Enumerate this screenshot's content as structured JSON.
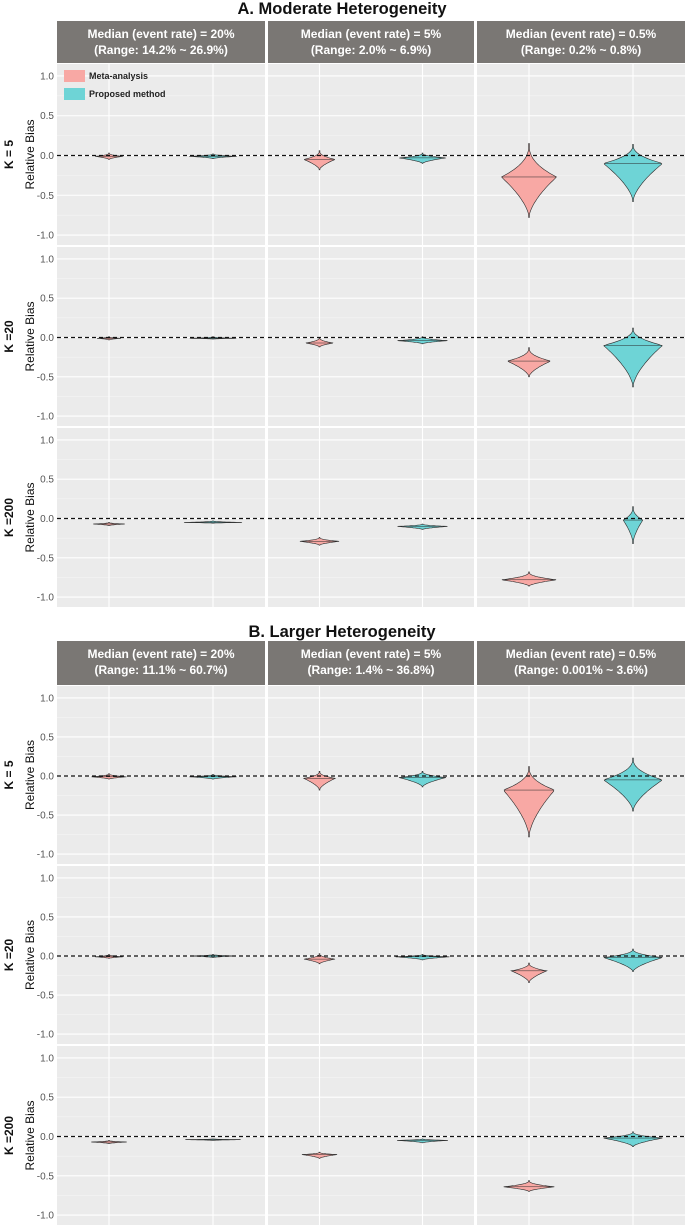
{
  "chart_data": {
    "type": "violin",
    "ylabel": "Relative Bias",
    "y_ticks": [
      "1.0",
      "0.5",
      "0.0",
      "-0.5",
      "-1.0"
    ],
    "ylim": [
      -1.05,
      1.05
    ],
    "reference_line": 0,
    "legend": {
      "position": "top-left",
      "items": [
        {
          "name": "Meta-analysis",
          "color": "#F8A8A4"
        },
        {
          "name": "Proposed method",
          "color": "#6ED4D6"
        }
      ]
    },
    "sections": [
      {
        "title": "A. Moderate Heterogeneity",
        "columns": [
          {
            "line1": "Median (event rate) = 20%",
            "line2": "(Range: 14.2% ~ 26.9%)"
          },
          {
            "line1": "Median (event rate) = 5%",
            "line2": "(Range: 2.0% ~ 6.9%)"
          },
          {
            "line1": "Median (event rate) = 0.5%",
            "line2": "(Range: 0.2% ~ 0.8%)"
          }
        ],
        "rows": [
          {
            "label": "K = 5",
            "cells": [
              [
                {
                  "series": "Meta-analysis",
                  "min": -0.05,
                  "max": 0.03,
                  "median": -0.01,
                  "halfwidth": 0.35
                },
                {
                  "series": "Proposed method",
                  "min": -0.04,
                  "max": 0.02,
                  "median": -0.01,
                  "halfwidth": 0.6
                }
              ],
              [
                {
                  "series": "Meta-analysis",
                  "min": -0.18,
                  "max": 0.06,
                  "median": -0.05,
                  "halfwidth": 0.4
                },
                {
                  "series": "Proposed method",
                  "min": -0.1,
                  "max": 0.03,
                  "median": -0.03,
                  "halfwidth": 0.6
                }
              ],
              [
                {
                  "series": "Meta-analysis",
                  "min": -0.78,
                  "max": 0.15,
                  "median": -0.27,
                  "halfwidth": 0.7
                },
                {
                  "series": "Proposed method",
                  "min": -0.58,
                  "max": 0.14,
                  "median": -0.1,
                  "halfwidth": 0.75
                }
              ]
            ]
          },
          {
            "label": "K =20",
            "cells": [
              [
                {
                  "series": "Meta-analysis",
                  "min": -0.03,
                  "max": 0.01,
                  "median": -0.01,
                  "halfwidth": 0.3
                },
                {
                  "series": "Proposed method",
                  "min": -0.02,
                  "max": 0.01,
                  "median": -0.01,
                  "halfwidth": 0.6
                }
              ],
              [
                {
                  "series": "Meta-analysis",
                  "min": -0.12,
                  "max": 0.0,
                  "median": -0.07,
                  "halfwidth": 0.35
                },
                {
                  "series": "Proposed method",
                  "min": -0.08,
                  "max": 0.01,
                  "median": -0.04,
                  "halfwidth": 0.65
                }
              ],
              [
                {
                  "series": "Meta-analysis",
                  "min": -0.5,
                  "max": -0.13,
                  "median": -0.3,
                  "halfwidth": 0.55
                },
                {
                  "series": "Proposed method",
                  "min": -0.63,
                  "max": 0.12,
                  "median": -0.1,
                  "halfwidth": 0.75
                }
              ]
            ]
          },
          {
            "label": "K =200",
            "cells": [
              [
                {
                  "series": "Meta-analysis",
                  "min": -0.09,
                  "max": -0.05,
                  "median": -0.07,
                  "halfwidth": 0.4
                },
                {
                  "series": "Proposed method",
                  "min": -0.06,
                  "max": -0.03,
                  "median": -0.05,
                  "halfwidth": 0.75
                }
              ],
              [
                {
                  "series": "Meta-analysis",
                  "min": -0.34,
                  "max": -0.24,
                  "median": -0.29,
                  "halfwidth": 0.5
                },
                {
                  "series": "Proposed method",
                  "min": -0.14,
                  "max": -0.07,
                  "median": -0.1,
                  "halfwidth": 0.65
                }
              ],
              [
                {
                  "series": "Meta-analysis",
                  "min": -0.86,
                  "max": -0.68,
                  "median": -0.78,
                  "halfwidth": 0.7
                },
                {
                  "series": "Proposed method",
                  "min": -0.32,
                  "max": 0.15,
                  "median": -0.02,
                  "halfwidth": 0.25
                }
              ]
            ]
          }
        ]
      },
      {
        "title": "B. Larger Heterogeneity",
        "columns": [
          {
            "line1": "Median (event rate) = 20%",
            "line2": "(Range: 11.1% ~ 60.7%)"
          },
          {
            "line1": "Median (event rate) = 5%",
            "line2": "(Range: 1.4% ~ 36.8%)"
          },
          {
            "line1": "Median (event rate) = 0.5%",
            "line2": "(Range: 0.001% ~ 3.6%)"
          }
        ],
        "rows": [
          {
            "label": "K = 5",
            "cells": [
              [
                {
                  "series": "Meta-analysis",
                  "min": -0.04,
                  "max": 0.03,
                  "median": -0.01,
                  "halfwidth": 0.45
                },
                {
                  "series": "Proposed method",
                  "min": -0.04,
                  "max": 0.02,
                  "median": -0.01,
                  "halfwidth": 0.6
                }
              ],
              [
                {
                  "series": "Meta-analysis",
                  "min": -0.18,
                  "max": 0.06,
                  "median": -0.03,
                  "halfwidth": 0.4
                },
                {
                  "series": "Proposed method",
                  "min": -0.14,
                  "max": 0.06,
                  "median": -0.02,
                  "halfwidth": 0.6
                }
              ],
              [
                {
                  "series": "Meta-analysis",
                  "min": -0.78,
                  "max": 0.12,
                  "median": -0.18,
                  "halfwidth": 0.65
                },
                {
                  "series": "Proposed method",
                  "min": -0.45,
                  "max": 0.23,
                  "median": -0.05,
                  "halfwidth": 0.75
                }
              ]
            ]
          },
          {
            "label": "K =20",
            "cells": [
              [
                {
                  "series": "Meta-analysis",
                  "min": -0.03,
                  "max": 0.02,
                  "median": -0.01,
                  "halfwidth": 0.35
                },
                {
                  "series": "Proposed method",
                  "min": -0.02,
                  "max": 0.02,
                  "median": 0.0,
                  "halfwidth": 0.55
                }
              ],
              [
                {
                  "series": "Meta-analysis",
                  "min": -0.1,
                  "max": 0.03,
                  "median": -0.04,
                  "halfwidth": 0.4
                },
                {
                  "series": "Proposed method",
                  "min": -0.05,
                  "max": 0.02,
                  "median": -0.01,
                  "halfwidth": 0.7
                }
              ],
              [
                {
                  "series": "Meta-analysis",
                  "min": -0.34,
                  "max": -0.09,
                  "median": -0.19,
                  "halfwidth": 0.45
                },
                {
                  "series": "Proposed method",
                  "min": -0.2,
                  "max": 0.09,
                  "median": -0.02,
                  "halfwidth": 0.75
                }
              ]
            ]
          },
          {
            "label": "K =200",
            "cells": [
              [
                {
                  "series": "Meta-analysis",
                  "min": -0.09,
                  "max": -0.05,
                  "median": -0.07,
                  "halfwidth": 0.45
                },
                {
                  "series": "Proposed method",
                  "min": -0.05,
                  "max": -0.03,
                  "median": -0.04,
                  "halfwidth": 0.7
                }
              ],
              [
                {
                  "series": "Meta-analysis",
                  "min": -0.28,
                  "max": -0.2,
                  "median": -0.23,
                  "halfwidth": 0.45
                },
                {
                  "series": "Proposed method",
                  "min": -0.08,
                  "max": -0.03,
                  "median": -0.05,
                  "halfwidth": 0.65
                }
              ],
              [
                {
                  "series": "Meta-analysis",
                  "min": -0.7,
                  "max": -0.56,
                  "median": -0.64,
                  "halfwidth": 0.65
                },
                {
                  "series": "Proposed method",
                  "min": -0.13,
                  "max": 0.06,
                  "median": -0.02,
                  "halfwidth": 0.75
                }
              ]
            ]
          }
        ]
      }
    ]
  }
}
